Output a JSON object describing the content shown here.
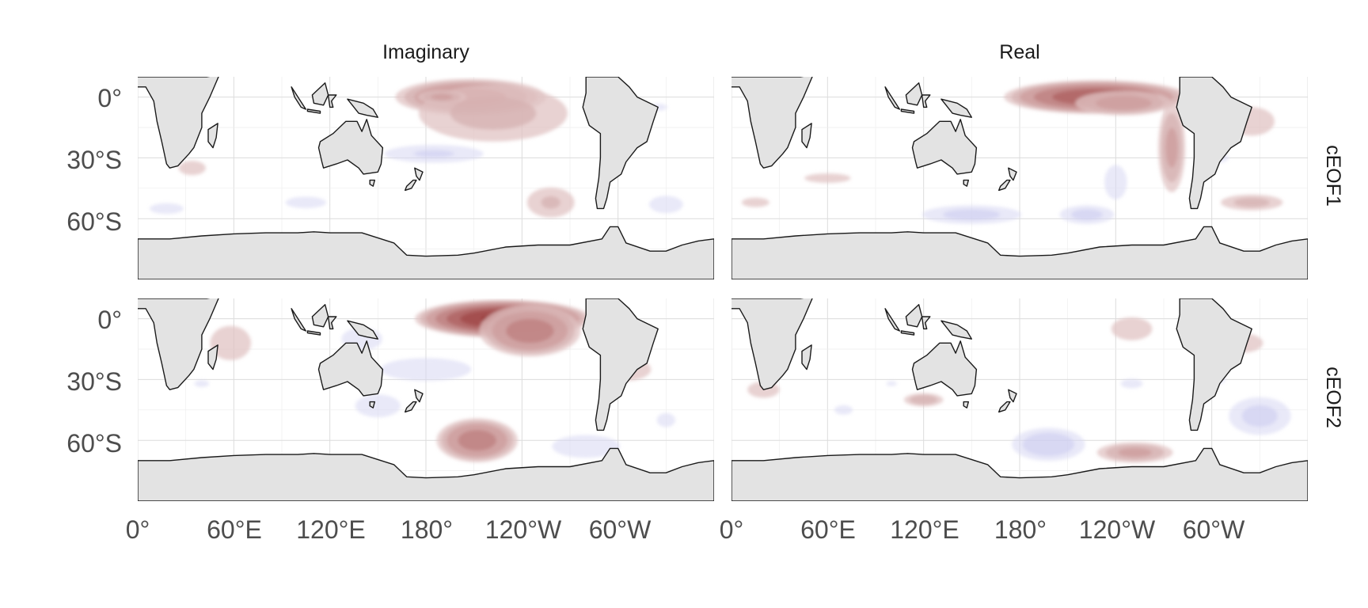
{
  "map_data": {
    "type": "faceted-contour-map",
    "projection": "equirectangular",
    "column_strips": [
      "Imaginary",
      "Real"
    ],
    "row_strips": [
      "cEOF1",
      "cEOF2"
    ],
    "x_ticks": [
      {
        "lon": 0,
        "label": "0°"
      },
      {
        "lon": 60,
        "label": "60°E"
      },
      {
        "lon": 120,
        "label": "120°E"
      },
      {
        "lon": 180,
        "label": "180°"
      },
      {
        "lon": 240,
        "label": "120°W"
      },
      {
        "lon": 300,
        "label": "60°W"
      }
    ],
    "y_ticks": [
      {
        "lat": 0,
        "label": "0°"
      },
      {
        "lat": -30,
        "label": "30°S"
      },
      {
        "lat": -60,
        "label": "60°S"
      }
    ],
    "lon_range": [
      0,
      360
    ],
    "lat_range": [
      -90,
      10
    ],
    "colors": {
      "land": "#e3e3e3",
      "coast": "#1a1a1a",
      "grid": "#e6e6e6",
      "positive": "#8b1e1e",
      "negative": "#6a6ad0",
      "tick_text": "#4d4d4d",
      "strip_text": "#1a1a1a"
    },
    "panels": [
      {
        "id": "cEOF1-Imaginary",
        "anomalies": [
          {
            "lon": 208,
            "lat": 0,
            "rlon": 52,
            "rlat": 10,
            "value": 0.55
          },
          {
            "lon": 222,
            "lat": -8,
            "rlon": 60,
            "rlat": 18,
            "value": 0.25
          },
          {
            "lon": 190,
            "lat": 0,
            "rlon": 18,
            "rlat": 4,
            "value": 0.35
          },
          {
            "lon": 185,
            "lat": -28,
            "rlon": 42,
            "rlat": 6,
            "value": -0.22
          },
          {
            "lon": 258,
            "lat": -52,
            "rlon": 20,
            "rlat": 10,
            "value": 0.22
          },
          {
            "lon": 105,
            "lat": -52,
            "rlon": 18,
            "rlat": 4,
            "value": -0.2
          },
          {
            "lon": 18,
            "lat": -55,
            "rlon": 16,
            "rlat": 4,
            "value": -0.18
          },
          {
            "lon": 330,
            "lat": -53,
            "rlon": 15,
            "rlat": 6,
            "value": -0.2
          },
          {
            "lon": 34,
            "lat": -35,
            "rlon": 12,
            "rlat": 5,
            "value": 0.2
          },
          {
            "lon": 325,
            "lat": -5,
            "rlon": 10,
            "rlat": 3,
            "value": -0.15
          }
        ]
      },
      {
        "id": "cEOF1-Real",
        "anomalies": [
          {
            "lon": 228,
            "lat": 0,
            "rlon": 62,
            "rlat": 9,
            "value": 0.75
          },
          {
            "lon": 245,
            "lat": -3,
            "rlon": 35,
            "rlat": 7,
            "value": 0.4
          },
          {
            "lon": 275,
            "lat": -25,
            "rlon": 10,
            "rlat": 26,
            "value": 0.35
          },
          {
            "lon": 325,
            "lat": -52,
            "rlon": 25,
            "rlat": 5,
            "value": 0.25
          },
          {
            "lon": 325,
            "lat": -12,
            "rlon": 20,
            "rlat": 10,
            "value": 0.2
          },
          {
            "lon": 150,
            "lat": -58,
            "rlon": 40,
            "rlat": 6,
            "value": -0.25
          },
          {
            "lon": 222,
            "lat": -58,
            "rlon": 22,
            "rlat": 6,
            "value": -0.25
          },
          {
            "lon": 240,
            "lat": -42,
            "rlon": 10,
            "rlat": 12,
            "value": -0.2
          },
          {
            "lon": 60,
            "lat": -40,
            "rlon": 25,
            "rlat": 4,
            "value": 0.15
          },
          {
            "lon": 15,
            "lat": -52,
            "rlon": 15,
            "rlat": 4,
            "value": 0.15
          },
          {
            "lon": 300,
            "lat": -30,
            "rlon": 15,
            "rlat": 4,
            "value": -0.2
          }
        ]
      },
      {
        "id": "cEOF2-Imaginary",
        "anomalies": [
          {
            "lon": 228,
            "lat": 0,
            "rlon": 58,
            "rlat": 10,
            "value": 0.95
          },
          {
            "lon": 245,
            "lat": -6,
            "rlon": 35,
            "rlat": 14,
            "value": 0.55
          },
          {
            "lon": 212,
            "lat": -60,
            "rlon": 28,
            "rlat": 12,
            "value": 0.55
          },
          {
            "lon": 58,
            "lat": -12,
            "rlon": 18,
            "rlat": 12,
            "value": 0.2
          },
          {
            "lon": 180,
            "lat": -25,
            "rlon": 40,
            "rlat": 8,
            "value": -0.2
          },
          {
            "lon": 150,
            "lat": -43,
            "rlon": 20,
            "rlat": 8,
            "value": -0.2
          },
          {
            "lon": 140,
            "lat": -10,
            "rlon": 18,
            "rlat": 8,
            "value": -0.2
          },
          {
            "lon": 280,
            "lat": -63,
            "rlon": 30,
            "rlat": 8,
            "value": -0.2
          },
          {
            "lon": 305,
            "lat": -25,
            "rlon": 22,
            "rlat": 8,
            "value": 0.2
          },
          {
            "lon": 330,
            "lat": -50,
            "rlon": 10,
            "rlat": 6,
            "value": -0.15
          },
          {
            "lon": 40,
            "lat": -32,
            "rlon": 8,
            "rlat": 3,
            "value": -0.15
          }
        ]
      },
      {
        "id": "cEOF2-Real",
        "anomalies": [
          {
            "lon": 252,
            "lat": -66,
            "rlon": 28,
            "rlat": 6,
            "value": 0.35
          },
          {
            "lon": 198,
            "lat": -62,
            "rlon": 28,
            "rlat": 10,
            "value": -0.3
          },
          {
            "lon": 120,
            "lat": -40,
            "rlon": 15,
            "rlat": 4,
            "value": 0.3
          },
          {
            "lon": 330,
            "lat": -48,
            "rlon": 25,
            "rlat": 12,
            "value": -0.25
          },
          {
            "lon": 250,
            "lat": -5,
            "rlon": 18,
            "rlat": 8,
            "value": 0.2
          },
          {
            "lon": 320,
            "lat": -12,
            "rlon": 18,
            "rlat": 7,
            "value": 0.18
          },
          {
            "lon": 20,
            "lat": -35,
            "rlon": 15,
            "rlat": 6,
            "value": 0.18
          },
          {
            "lon": 300,
            "lat": -30,
            "rlon": 12,
            "rlat": 4,
            "value": -0.2
          },
          {
            "lon": 70,
            "lat": -45,
            "rlon": 10,
            "rlat": 4,
            "value": -0.15
          },
          {
            "lon": 250,
            "lat": -32,
            "rlon": 12,
            "rlat": 4,
            "value": -0.15
          },
          {
            "lon": 100,
            "lat": -32,
            "rlon": 8,
            "rlat": 3,
            "value": -0.12
          }
        ]
      }
    ],
    "land_masses": {
      "africa": [
        [
          -15,
          10
        ],
        [
          0,
          10
        ],
        [
          12,
          10
        ],
        [
          30,
          10
        ],
        [
          43,
          10
        ],
        [
          51,
          11
        ],
        [
          45,
          0
        ],
        [
          40,
          -8
        ],
        [
          40,
          -15
        ],
        [
          35,
          -25
        ],
        [
          32,
          -28
        ],
        [
          25,
          -34
        ],
        [
          20,
          -35
        ],
        [
          18,
          -33
        ],
        [
          15,
          -22
        ],
        [
          12,
          -12
        ],
        [
          10,
          -2
        ],
        [
          5,
          5
        ],
        [
          -5,
          5
        ],
        [
          -15,
          8
        ]
      ],
      "madagascar": [
        [
          44,
          -16
        ],
        [
          50,
          -13
        ],
        [
          49,
          -20
        ],
        [
          47,
          -25
        ],
        [
          44,
          -22
        ]
      ],
      "australia": [
        [
          114,
          -22
        ],
        [
          122,
          -18
        ],
        [
          130,
          -12
        ],
        [
          137,
          -12
        ],
        [
          140,
          -17
        ],
        [
          143,
          -11
        ],
        [
          146,
          -19
        ],
        [
          153,
          -25
        ],
        [
          152,
          -33
        ],
        [
          150,
          -37
        ],
        [
          141,
          -38
        ],
        [
          138,
          -35
        ],
        [
          131,
          -31
        ],
        [
          124,
          -33
        ],
        [
          116,
          -35
        ],
        [
          115,
          -32
        ],
        [
          113,
          -25
        ]
      ],
      "tasmania": [
        [
          145,
          -41
        ],
        [
          148,
          -41
        ],
        [
          147,
          -44
        ],
        [
          145,
          -43
        ]
      ],
      "new_zealand_north": [
        [
          173,
          -35
        ],
        [
          178,
          -37
        ],
        [
          176,
          -41
        ],
        [
          174,
          -39
        ]
      ],
      "new_zealand_south": [
        [
          172,
          -41
        ],
        [
          174,
          -41
        ],
        [
          171,
          -45
        ],
        [
          167,
          -46
        ],
        [
          168,
          -44
        ]
      ],
      "new_guinea": [
        [
          131,
          -1
        ],
        [
          141,
          -3
        ],
        [
          147,
          -6
        ],
        [
          150,
          -10
        ],
        [
          143,
          -9
        ],
        [
          138,
          -8
        ],
        [
          134,
          -4
        ]
      ],
      "sumatra": [
        [
          96,
          5
        ],
        [
          105,
          -6
        ],
        [
          102,
          -5
        ],
        [
          98,
          0
        ]
      ],
      "borneo": [
        [
          109,
          1
        ],
        [
          117,
          7
        ],
        [
          119,
          1
        ],
        [
          116,
          -4
        ],
        [
          110,
          -3
        ]
      ],
      "java": [
        [
          106,
          -6
        ],
        [
          114,
          -7
        ],
        [
          114,
          -8
        ],
        [
          106,
          -7
        ]
      ],
      "sulawesi": [
        [
          119,
          1
        ],
        [
          124,
          1
        ],
        [
          121,
          -2
        ],
        [
          122,
          -5
        ],
        [
          120,
          -5
        ]
      ],
      "south_america": [
        [
          280,
          10
        ],
        [
          295,
          10
        ],
        [
          300,
          10
        ],
        [
          307,
          5
        ],
        [
          312,
          0
        ],
        [
          325,
          -5
        ],
        [
          322,
          -12
        ],
        [
          318,
          -22
        ],
        [
          312,
          -25
        ],
        [
          305,
          -32
        ],
        [
          302,
          -38
        ],
        [
          295,
          -42
        ],
        [
          293,
          -50
        ],
        [
          291,
          -55
        ],
        [
          287,
          -55
        ],
        [
          286,
          -50
        ],
        [
          288,
          -40
        ],
        [
          289,
          -30
        ],
        [
          289,
          -18
        ],
        [
          282,
          -14
        ],
        [
          278,
          -5
        ],
        [
          280,
          2
        ]
      ],
      "antarctica": [
        [
          0,
          -70
        ],
        [
          20,
          -70
        ],
        [
          40,
          -68.5
        ],
        [
          60,
          -67.5
        ],
        [
          80,
          -67
        ],
        [
          100,
          -67
        ],
        [
          110,
          -66.5
        ],
        [
          120,
          -67
        ],
        [
          140,
          -67
        ],
        [
          160,
          -72
        ],
        [
          168,
          -78
        ],
        [
          180,
          -78.5
        ],
        [
          200,
          -78
        ],
        [
          210,
          -77
        ],
        [
          230,
          -74
        ],
        [
          250,
          -73
        ],
        [
          270,
          -73
        ],
        [
          290,
          -70
        ],
        [
          295,
          -64
        ],
        [
          300,
          -64
        ],
        [
          305,
          -72
        ],
        [
          320,
          -76
        ],
        [
          330,
          -76
        ],
        [
          340,
          -73
        ],
        [
          350,
          -71
        ],
        [
          360,
          -70
        ],
        [
          360,
          -90
        ],
        [
          0,
          -90
        ]
      ]
    }
  }
}
